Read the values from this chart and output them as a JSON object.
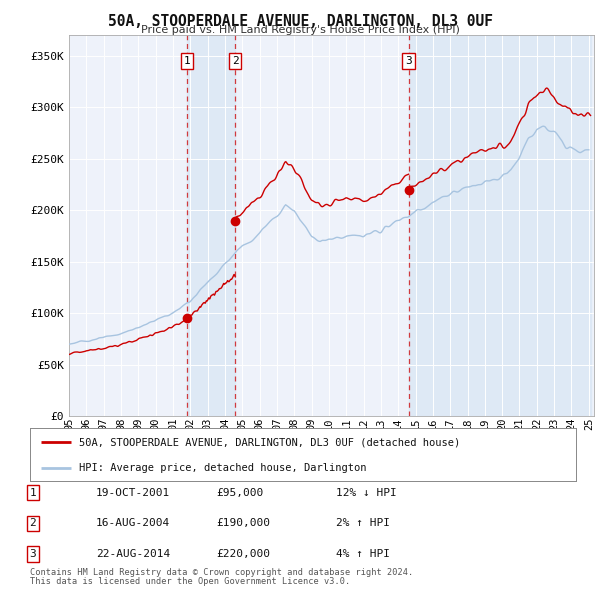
{
  "title": "50A, STOOPERDALE AVENUE, DARLINGTON, DL3 0UF",
  "subtitle": "Price paid vs. HM Land Registry's House Price Index (HPI)",
  "xlim": [
    1995.0,
    2025.3
  ],
  "ylim": [
    0,
    370000
  ],
  "yticks": [
    0,
    50000,
    100000,
    150000,
    200000,
    250000,
    300000,
    350000
  ],
  "ytick_labels": [
    "£0",
    "£50K",
    "£100K",
    "£150K",
    "£200K",
    "£250K",
    "£300K",
    "£350K"
  ],
  "xticks": [
    1995,
    1996,
    1997,
    1998,
    1999,
    2000,
    2001,
    2002,
    2003,
    2004,
    2005,
    2006,
    2007,
    2008,
    2009,
    2010,
    2011,
    2012,
    2013,
    2014,
    2015,
    2016,
    2017,
    2018,
    2019,
    2020,
    2021,
    2022,
    2023,
    2024,
    2025
  ],
  "xtick_labels": [
    "95",
    "96",
    "97",
    "98",
    "99",
    "00",
    "01",
    "02",
    "03",
    "04",
    "05",
    "06",
    "07",
    "08",
    "09",
    "10",
    "11",
    "12",
    "13",
    "14",
    "15",
    "16",
    "17",
    "18",
    "19",
    "20",
    "21",
    "22",
    "23",
    "24",
    "25"
  ],
  "sale_color": "#cc0000",
  "hpi_color": "#a8c4e0",
  "shade_color": "#dce8f5",
  "vline_color": "#cc0000",
  "transactions": [
    {
      "num": 1,
      "date_x": 2001.8,
      "price": 95000,
      "label": "1",
      "date_str": "19-OCT-2001",
      "price_str": "£95,000",
      "hpi_str": "12% ↓ HPI"
    },
    {
      "num": 2,
      "date_x": 2004.6,
      "price": 190000,
      "label": "2",
      "date_str": "16-AUG-2004",
      "price_str": "£190,000",
      "hpi_str": "2% ↑ HPI"
    },
    {
      "num": 3,
      "date_x": 2014.6,
      "price": 220000,
      "label": "3",
      "date_str": "22-AUG-2014",
      "price_str": "£220,000",
      "hpi_str": "4% ↑ HPI"
    }
  ],
  "legend_entries": [
    {
      "label": "50A, STOOPERDALE AVENUE, DARLINGTON, DL3 0UF (detached house)",
      "color": "#cc0000"
    },
    {
      "label": "HPI: Average price, detached house, Darlington",
      "color": "#a8c4e0"
    }
  ],
  "footer1": "Contains HM Land Registry data © Crown copyright and database right 2024.",
  "footer2": "This data is licensed under the Open Government Licence v3.0.",
  "background_color": "#ffffff",
  "plot_bg_color": "#eef2fa",
  "grid_color": "#ffffff"
}
